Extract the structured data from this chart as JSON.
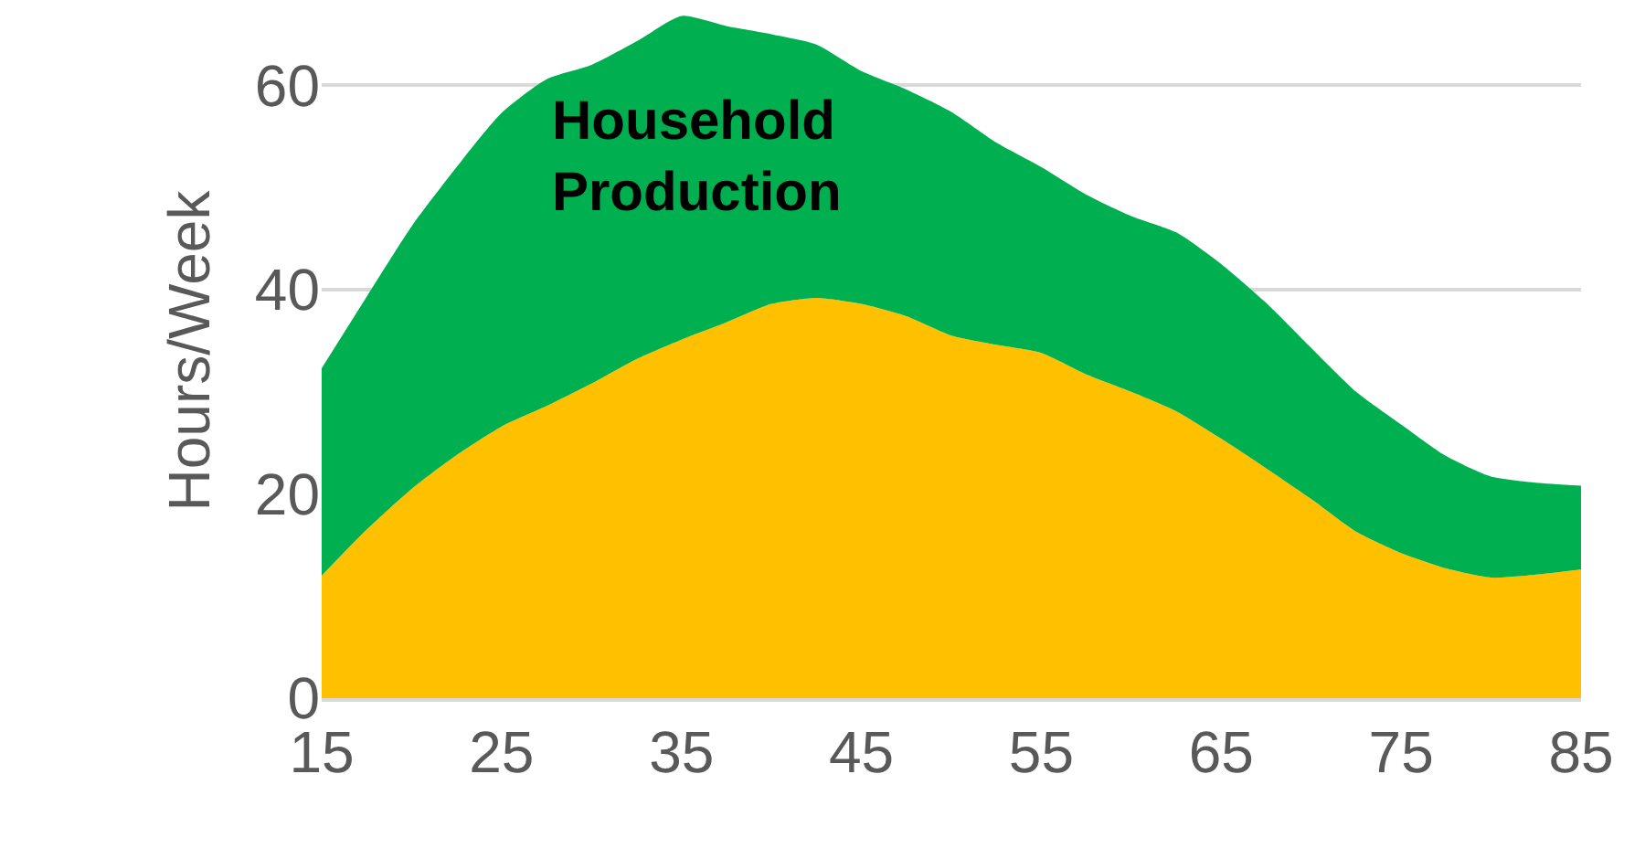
{
  "chart_data": {
    "type": "area",
    "stacked": true,
    "ylabel": "Hours/Week",
    "x": [
      15,
      17.5,
      20,
      22.5,
      25,
      27.5,
      30,
      32.5,
      35,
      37.5,
      40,
      42.5,
      45,
      47.5,
      50,
      52.5,
      55,
      57.5,
      60,
      62.5,
      65,
      67.5,
      70,
      72.5,
      75,
      77.5,
      80,
      82.5,
      85
    ],
    "series": [
      {
        "color": "#ffc000",
        "values": [
          12.0,
          16.5,
          20.5,
          23.8,
          26.6,
          28.6,
          30.8,
          33.2,
          35.1,
          36.8,
          38.6,
          39.2,
          38.6,
          37.4,
          35.5,
          34.6,
          33.8,
          31.7,
          30.0,
          28.1,
          25.4,
          22.5,
          19.5,
          16.3,
          14.2,
          12.7,
          11.8,
          12.1,
          12.6
        ]
      },
      {
        "name": "Household Production",
        "color": "#00b050",
        "values": [
          20.3,
          22.8,
          25.7,
          28.2,
          30.7,
          32.0,
          31.2,
          31.1,
          31.7,
          29.0,
          26.4,
          24.8,
          22.8,
          22.2,
          21.9,
          19.8,
          18.2,
          17.6,
          17.2,
          17.5,
          17.1,
          16.2,
          14.8,
          13.7,
          12.6,
          11.0,
          9.9,
          9.0,
          8.2
        ]
      }
    ],
    "xlim": [
      15,
      85
    ],
    "xticks": [
      15,
      25,
      35,
      45,
      55,
      65,
      75,
      85
    ],
    "ylim": [
      0,
      68
    ],
    "yticks": [
      0,
      20,
      40,
      60
    ],
    "grid": "y",
    "legend": false
  }
}
